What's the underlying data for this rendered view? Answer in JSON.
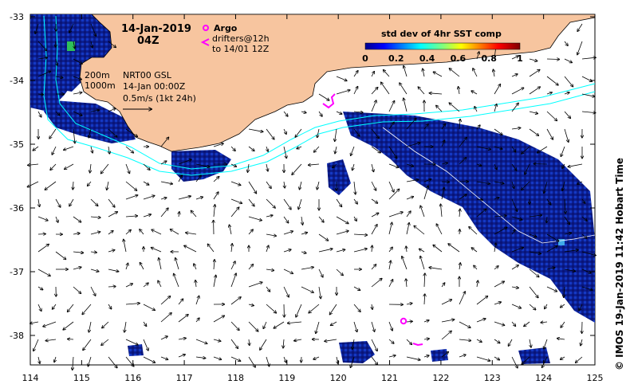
{
  "title": {
    "date": "14-Jan-2019",
    "hour": "04Z"
  },
  "legend": {
    "argo_label": "Argo",
    "drifters_label": "drifters@12h",
    "drifters_period": "to 14/01 12Z",
    "argo_color": "#ff00ff",
    "drifter_color": "#ff00ff"
  },
  "isobaths": {
    "shallow": "200m",
    "deep": "1000m",
    "color": "#00ffff"
  },
  "current_info": {
    "product": "NRT00 GSL",
    "time": "14-Jan 00:00Z",
    "scale": "0.5m/s (1kt 24h)"
  },
  "colorbar": {
    "title": "std dev of 4hr SST comp",
    "ticks": [
      "0",
      "0.2",
      "0.4",
      "0.6",
      "0.8",
      "1"
    ]
  },
  "axes": {
    "x_ticks": [
      "114",
      "115",
      "116",
      "117",
      "118",
      "119",
      "120",
      "121",
      "122",
      "123",
      "124",
      "125"
    ],
    "y_ticks": [
      "-33",
      "-34",
      "-35",
      "-36",
      "-37",
      "-38"
    ]
  },
  "credit": "© IMOS 19-Jan-2019 11:42 Hobart Time",
  "colors": {
    "land": "#f7c59f",
    "sst_low": "#0a1a8c",
    "sst_mid": "#1d4fd6"
  }
}
